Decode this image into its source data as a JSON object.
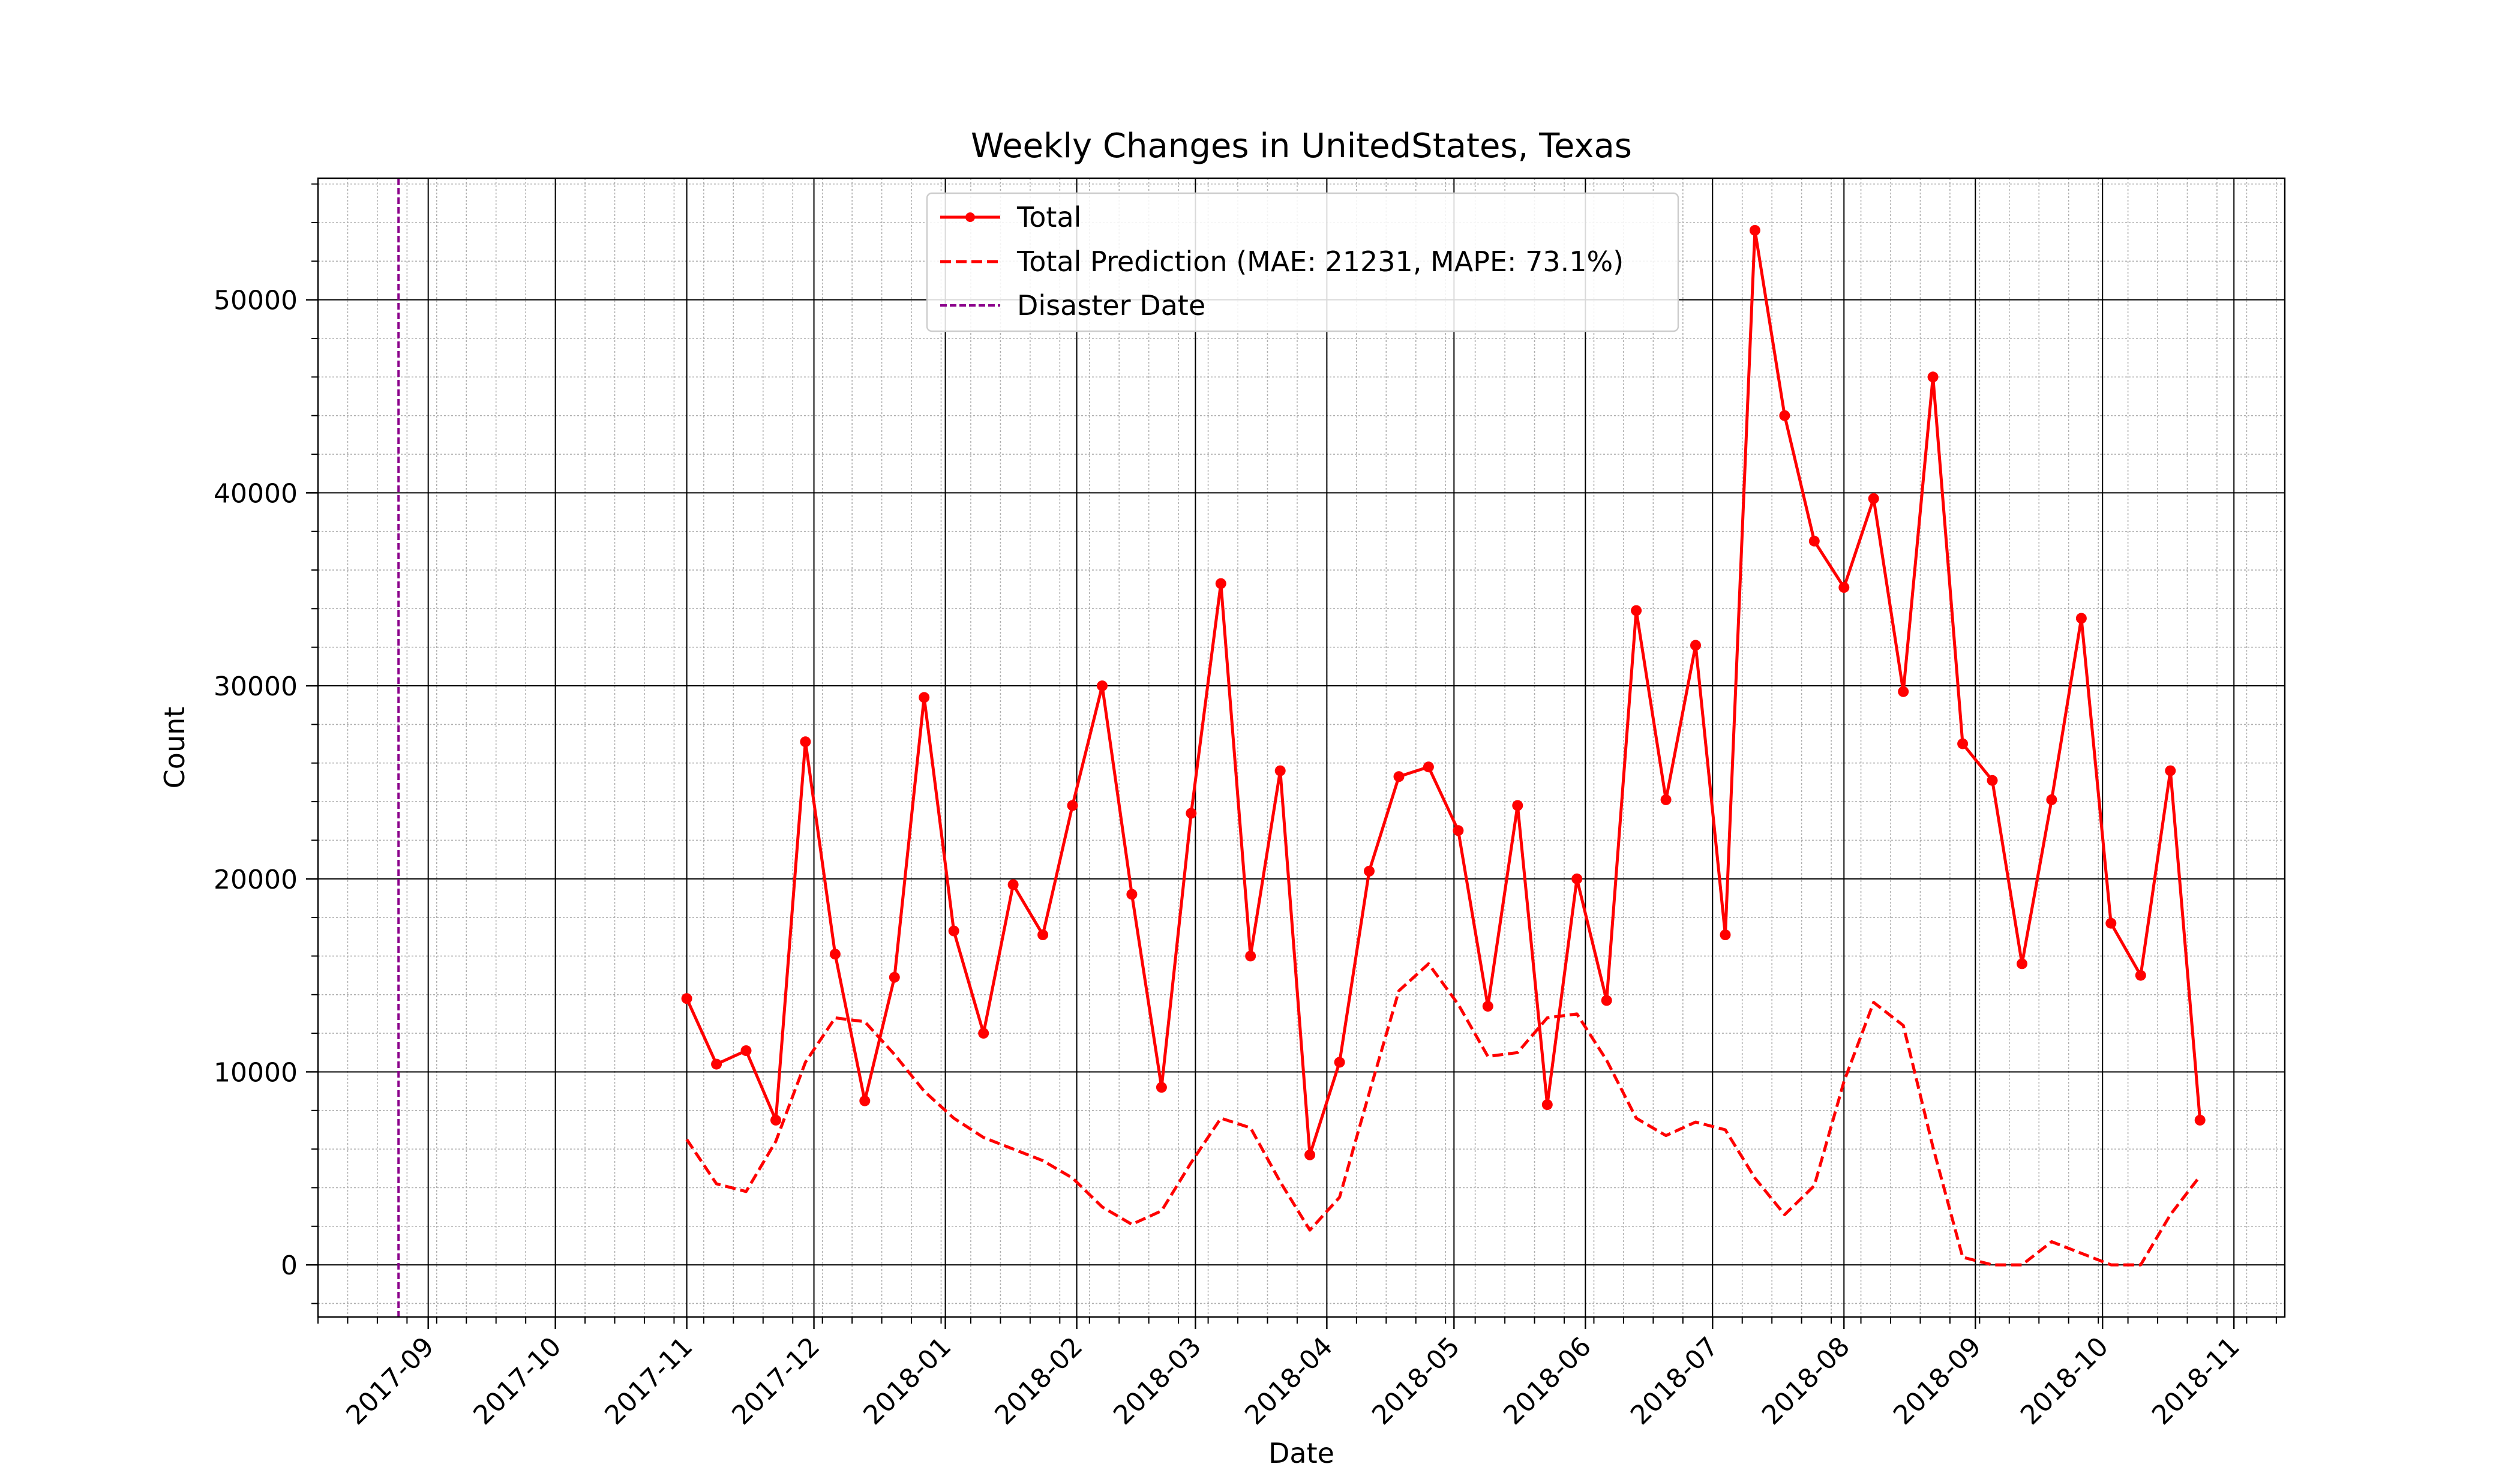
{
  "chart_data": {
    "type": "line",
    "title": "Weekly Changes in UnitedStates, Texas",
    "xlabel": "Date",
    "ylabel": "Count",
    "x_axis": {
      "kind": "date",
      "range": [
        "2017-08-06",
        "2018-11-13"
      ],
      "tick_labels": [
        "2017-09",
        "2017-10",
        "2017-11",
        "2017-12",
        "2018-01",
        "2018-02",
        "2018-03",
        "2018-04",
        "2018-05",
        "2018-06",
        "2018-07",
        "2018-08",
        "2018-09",
        "2018-10",
        "2018-11"
      ],
      "tick_dates": [
        "2017-09-01",
        "2017-10-01",
        "2017-11-01",
        "2017-12-01",
        "2018-01-01",
        "2018-02-01",
        "2018-03-01",
        "2018-04-01",
        "2018-05-01",
        "2018-06-01",
        "2018-07-01",
        "2018-08-01",
        "2018-09-01",
        "2018-10-01",
        "2018-11-01"
      ]
    },
    "y_axis": {
      "range": [
        -2700,
        56300
      ],
      "ticks": [
        0,
        10000,
        20000,
        30000,
        40000,
        50000
      ],
      "tick_labels": [
        "0",
        "10000",
        "20000",
        "30000",
        "40000",
        "50000"
      ]
    },
    "grid": {
      "major": true,
      "minor": true
    },
    "legend": {
      "position": "top-center"
    },
    "x": [
      "2017-11-01",
      "2017-11-08",
      "2017-11-15",
      "2017-11-22",
      "2017-11-29",
      "2017-12-06",
      "2017-12-13",
      "2017-12-20",
      "2017-12-27",
      "2018-01-03",
      "2018-01-10",
      "2018-01-17",
      "2018-01-24",
      "2018-01-31",
      "2018-02-07",
      "2018-02-14",
      "2018-02-21",
      "2018-02-28",
      "2018-03-07",
      "2018-03-14",
      "2018-03-21",
      "2018-03-28",
      "2018-04-04",
      "2018-04-11",
      "2018-04-18",
      "2018-04-25",
      "2018-05-02",
      "2018-05-09",
      "2018-05-16",
      "2018-05-23",
      "2018-05-30",
      "2018-06-06",
      "2018-06-13",
      "2018-06-20",
      "2018-06-27",
      "2018-07-04",
      "2018-07-11",
      "2018-07-18",
      "2018-07-25",
      "2018-08-01",
      "2018-08-08",
      "2018-08-15",
      "2018-08-22",
      "2018-08-29",
      "2018-09-05",
      "2018-09-12",
      "2018-09-19",
      "2018-09-26",
      "2018-10-03",
      "2018-10-10",
      "2018-10-17",
      "2018-10-24"
    ],
    "series": [
      {
        "name": "Total",
        "style": "solid-with-markers",
        "color": "#ff0000",
        "values": [
          13800,
          10400,
          11100,
          7500,
          27100,
          16100,
          8500,
          14900,
          29400,
          17300,
          12000,
          19700,
          17100,
          23800,
          30000,
          19200,
          9200,
          23400,
          35300,
          16000,
          25600,
          5700,
          10500,
          20400,
          25300,
          25800,
          22500,
          13400,
          23800,
          8300,
          20000,
          13700,
          33900,
          24100,
          32100,
          17100,
          53600,
          44000,
          37500,
          35100,
          39700,
          29700,
          46000,
          27000,
          25100,
          15600,
          24100,
          33500,
          17700,
          15000,
          25600,
          7500
        ]
      },
      {
        "name": "Total Prediction (MAE: 21231, MAPE: 73.1%)",
        "style": "dashed",
        "color": "#ff0000",
        "values": [
          6500,
          4200,
          3800,
          6400,
          10500,
          12800,
          12600,
          10900,
          9000,
          7600,
          6600,
          6000,
          5400,
          4500,
          3000,
          2100,
          2800,
          5300,
          7600,
          7100,
          4300,
          1800,
          3500,
          8900,
          14200,
          15600,
          13500,
          10800,
          11000,
          12800,
          13000,
          10600,
          7600,
          6700,
          7400,
          7000,
          4500,
          2600,
          4100,
          9500,
          13600,
          12400,
          6100,
          400,
          0,
          0,
          1200,
          600,
          0,
          0,
          2600,
          4600
        ]
      }
    ],
    "annotations": [
      {
        "type": "vline",
        "name": "Disaster Date",
        "x": "2017-08-25",
        "style": "dashed",
        "color": "#8b008b"
      }
    ]
  }
}
